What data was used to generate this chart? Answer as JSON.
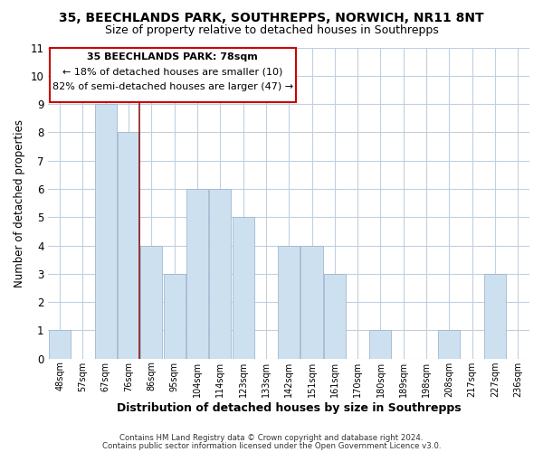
{
  "title": "35, BEECHLANDS PARK, SOUTHREPPS, NORWICH, NR11 8NT",
  "subtitle": "Size of property relative to detached houses in Southrepps",
  "xlabel": "Distribution of detached houses by size in Southrepps",
  "ylabel": "Number of detached properties",
  "bar_labels": [
    "48sqm",
    "57sqm",
    "67sqm",
    "76sqm",
    "86sqm",
    "95sqm",
    "104sqm",
    "114sqm",
    "123sqm",
    "133sqm",
    "142sqm",
    "151sqm",
    "161sqm",
    "170sqm",
    "180sqm",
    "189sqm",
    "198sqm",
    "208sqm",
    "217sqm",
    "227sqm",
    "236sqm"
  ],
  "bar_values": [
    1,
    0,
    9,
    8,
    4,
    3,
    6,
    6,
    5,
    0,
    4,
    4,
    3,
    0,
    1,
    0,
    0,
    1,
    0,
    3,
    0
  ],
  "highlight_index": 3,
  "bar_color": "#cde0f0",
  "bar_edge_color": "#a0b8d0",
  "highlight_line_color": "#8b1a1a",
  "ylim": [
    0,
    11
  ],
  "yticks": [
    0,
    1,
    2,
    3,
    4,
    5,
    6,
    7,
    8,
    9,
    10,
    11
  ],
  "annotation_title": "35 BEECHLANDS PARK: 78sqm",
  "annotation_line1": "← 18% of detached houses are smaller (10)",
  "annotation_line2": "82% of semi-detached houses are larger (47) →",
  "footer1": "Contains HM Land Registry data © Crown copyright and database right 2024.",
  "footer2": "Contains public sector information licensed under the Open Government Licence v3.0.",
  "background_color": "#ffffff",
  "grid_color": "#c0d0e0"
}
